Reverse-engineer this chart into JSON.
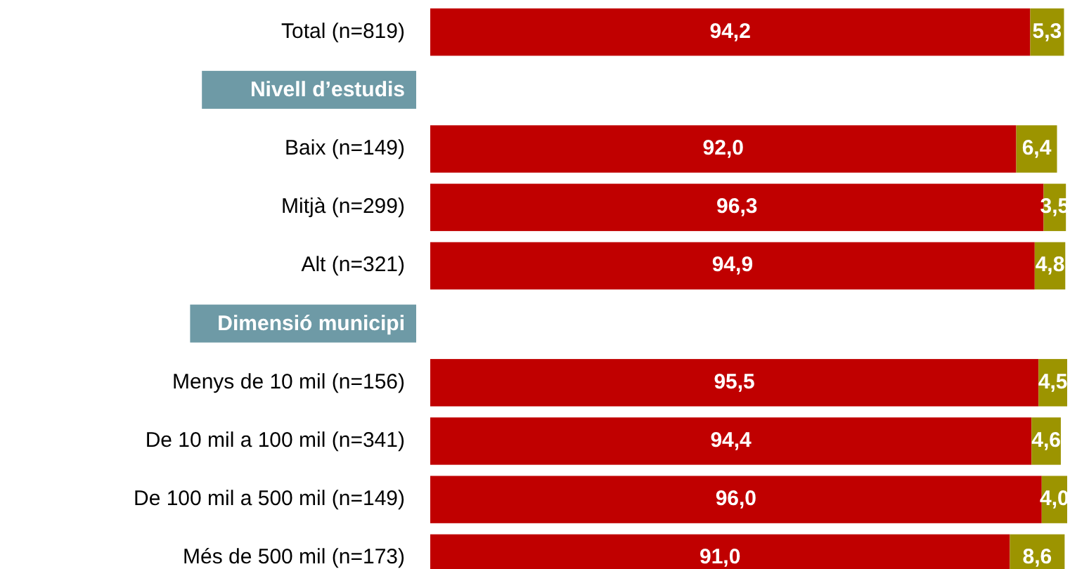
{
  "chart_data": {
    "type": "bar",
    "orientation": "horizontal",
    "stacked": true,
    "tick_labels": "y",
    "categories": [
      "Total (n=819)",
      "Nivell d’estudis",
      "Baix (n=149)",
      "Mitjà (n=299)",
      "Alt (n=321)",
      "Dimensió municipi",
      "Menys de 10 mil (n=156)",
      "De 10 mil a 100 mil (n=341)",
      "De 100 mil a 500 mil (n=149)",
      "Més de 500 mil (n=173)"
    ],
    "series": [
      {
        "color": "#c00000",
        "values": [
          94.2,
          null,
          92.0,
          96.3,
          94.9,
          null,
          95.5,
          94.4,
          96.0,
          91.0
        ],
        "value_labels": [
          "94,2",
          null,
          "92,0",
          "96,3",
          "94,9",
          null,
          "95,5",
          "94,4",
          "96,0",
          "91,0"
        ]
      },
      {
        "color": "#9c9400",
        "values": [
          5.3,
          null,
          6.4,
          3.5,
          4.8,
          null,
          4.5,
          4.6,
          4.0,
          8.6
        ],
        "value_labels": [
          "5,3",
          null,
          "6,4",
          "3,5",
          "4,8",
          null,
          "4,5",
          "4,6",
          "4,0",
          "8,6"
        ]
      }
    ]
  }
}
